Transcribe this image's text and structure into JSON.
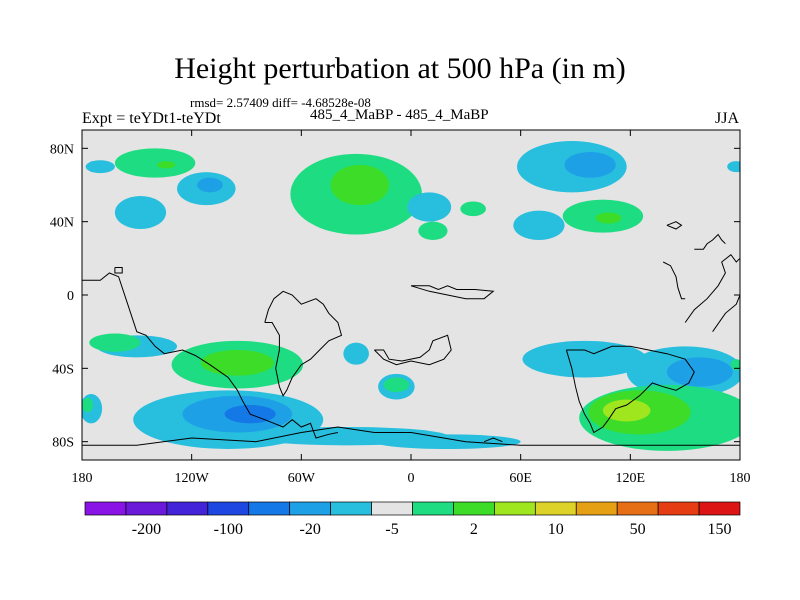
{
  "chart_data": {
    "type": "contour map",
    "title": "Height perturbation at 500 hPa (in m)",
    "rmsd_line": "rmsd= 2.57409 diff= -4.68528e-08",
    "left_label": "Expt = teYDt1-teYDt",
    "center_label": "485_4_MaBP - 485_4_MaBP",
    "right_label": "JJA",
    "x_ticks": [
      "180",
      "120W",
      "60W",
      "0",
      "60E",
      "120E",
      "180"
    ],
    "x_tick_values": [
      -180,
      -120,
      -60,
      0,
      60,
      120,
      180
    ],
    "y_ticks": [
      "80N",
      "40N",
      "0",
      "40S",
      "80S"
    ],
    "y_tick_values": [
      80,
      40,
      0,
      -40,
      -80
    ],
    "xlim": [
      -180,
      180
    ],
    "ylim": [
      -90,
      90
    ],
    "colorbar_labels": [
      "-200",
      "-100",
      "-20",
      "-5",
      "2",
      "10",
      "50",
      "150"
    ],
    "colorbar_colors": [
      "#8a14e6",
      "#6a1ad8",
      "#4424d8",
      "#1e46e0",
      "#1478e6",
      "#1ea0e6",
      "#28bede",
      "#e4e4e4",
      "#1edc82",
      "#3cdc28",
      "#a0e61e",
      "#dcd228",
      "#e6a014",
      "#e66e14",
      "#e63c14",
      "#dc1414"
    ],
    "background_color": "#e4e4e4",
    "contours": [
      {
        "level": "-5",
        "color": "#28bede",
        "lon": -170,
        "lat": 70,
        "rlon": 8,
        "rlat": 3.5
      },
      {
        "level": "-5",
        "color": "#28bede",
        "lon": -112,
        "lat": 58,
        "rlon": 16,
        "rlat": 9
      },
      {
        "level": "-20",
        "color": "#1ea0e6",
        "lon": -110,
        "lat": 60,
        "rlon": 7,
        "rlat": 4
      },
      {
        "level": "-5",
        "color": "#28bede",
        "lon": -148,
        "lat": 45,
        "rlon": 14,
        "rlat": 9
      },
      {
        "level": "2",
        "color": "#1edc82",
        "lon": -140,
        "lat": 72,
        "rlon": 22,
        "rlat": 8
      },
      {
        "level": "10",
        "color": "#3cdc28",
        "lon": -134,
        "lat": 71,
        "rlon": 5,
        "rlat": 2
      },
      {
        "level": "2",
        "color": "#1edc82",
        "lon": -30,
        "lat": 55,
        "rlon": 36,
        "rlat": 22
      },
      {
        "level": "10",
        "color": "#3cdc28",
        "lon": -28,
        "lat": 60,
        "rlon": 16,
        "rlat": 11
      },
      {
        "level": "-5",
        "color": "#28bede",
        "lon": 10,
        "lat": 48,
        "rlon": 12,
        "rlat": 8
      },
      {
        "level": "2",
        "color": "#1edc82",
        "lon": 12,
        "lat": 35,
        "rlon": 8,
        "rlat": 5
      },
      {
        "level": "2",
        "color": "#1edc82",
        "lon": 34,
        "lat": 47,
        "rlon": 7,
        "rlat": 4
      },
      {
        "level": "-5",
        "color": "#28bede",
        "lon": 70,
        "lat": 38,
        "rlon": 14,
        "rlat": 8
      },
      {
        "level": "-5",
        "color": "#28bede",
        "lon": 88,
        "lat": 70,
        "rlon": 30,
        "rlat": 14
      },
      {
        "level": "-20",
        "color": "#1ea0e6",
        "lon": 98,
        "lat": 71,
        "rlon": 14,
        "rlat": 7
      },
      {
        "level": "2",
        "color": "#1edc82",
        "lon": 105,
        "lat": 43,
        "rlon": 22,
        "rlat": 9
      },
      {
        "level": "10",
        "color": "#3cdc28",
        "lon": 108,
        "lat": 42,
        "rlon": 7,
        "rlat": 3
      },
      {
        "level": "-5",
        "color": "#28bede",
        "lon": 178,
        "lat": 70,
        "rlon": 5,
        "rlat": 3
      },
      {
        "level": "-5",
        "color": "#28bede",
        "lon": -174,
        "lat": 70,
        "rlon": 3,
        "rlat": 3
      },
      {
        "level": "-5",
        "color": "#28bede",
        "lon": -150,
        "lat": -28,
        "rlon": 22,
        "rlat": 6
      },
      {
        "level": "2",
        "color": "#1edc82",
        "lon": -162,
        "lat": -26,
        "rlon": 14,
        "rlat": 5
      },
      {
        "level": "2",
        "color": "#1edc82",
        "lon": -95,
        "lat": -38,
        "rlon": 36,
        "rlat": 13
      },
      {
        "level": "10",
        "color": "#3cdc28",
        "lon": -95,
        "lat": -37,
        "rlon": 20,
        "rlat": 7
      },
      {
        "level": "-5",
        "color": "#28bede",
        "lon": -30,
        "lat": -32,
        "rlon": 7,
        "rlat": 6
      },
      {
        "level": "-5",
        "color": "#28bede",
        "lon": -8,
        "lat": -50,
        "rlon": 10,
        "rlat": 7
      },
      {
        "level": "2",
        "color": "#1edc82",
        "lon": -8,
        "lat": -49,
        "rlon": 7,
        "rlat": 4
      },
      {
        "level": "-5",
        "color": "#28bede",
        "lon": -100,
        "lat": -68,
        "rlon": 52,
        "rlat": 16
      },
      {
        "level": "-20",
        "color": "#1ea0e6",
        "lon": -95,
        "lat": -65,
        "rlon": 30,
        "rlat": 10
      },
      {
        "level": "-20",
        "color": "#1478e6",
        "lon": -88,
        "lat": -65,
        "rlon": 14,
        "rlat": 5
      },
      {
        "level": "-5",
        "color": "#28bede",
        "lon": -35,
        "lat": -77,
        "rlon": 55,
        "rlat": 5
      },
      {
        "level": "-5",
        "color": "#28bede",
        "lon": 20,
        "lat": -80,
        "rlon": 40,
        "rlat": 4
      },
      {
        "level": "-5",
        "color": "#28bede",
        "lon": -175,
        "lat": -62,
        "rlon": 6,
        "rlat": 8
      },
      {
        "level": "2",
        "color": "#1edc82",
        "lon": -177,
        "lat": -60,
        "rlon": 3,
        "rlat": 4
      },
      {
        "level": "-5",
        "color": "#28bede",
        "lon": 95,
        "lat": -35,
        "rlon": 34,
        "rlat": 10
      },
      {
        "level": "-5",
        "color": "#28bede",
        "lon": 150,
        "lat": -42,
        "rlon": 32,
        "rlat": 14
      },
      {
        "level": "-20",
        "color": "#1ea0e6",
        "lon": 158,
        "lat": -42,
        "rlon": 18,
        "rlat": 8
      },
      {
        "level": "2",
        "color": "#1edc82",
        "lon": 140,
        "lat": -67,
        "rlon": 48,
        "rlat": 18
      },
      {
        "level": "10",
        "color": "#3cdc28",
        "lon": 125,
        "lat": -64,
        "rlon": 28,
        "rlat": 12
      },
      {
        "level": "50",
        "color": "#a0e61e",
        "lon": 118,
        "lat": -63,
        "rlon": 13,
        "rlat": 6
      },
      {
        "level": "2",
        "color": "#1edc82",
        "lon": 178,
        "lat": -38,
        "rlon": 3,
        "rlat": 3
      }
    ],
    "coastlines": [
      [
        [
          -180,
          -82
        ],
        [
          -150,
          -82
        ],
        [
          -120,
          -78
        ],
        [
          -85,
          -80
        ],
        [
          -60,
          -75
        ],
        [
          -40,
          -72
        ],
        [
          -20,
          -75
        ],
        [
          0,
          -75
        ],
        [
          30,
          -80
        ],
        [
          60,
          -82
        ],
        [
          100,
          -82
        ],
        [
          150,
          -82
        ],
        [
          180,
          -82
        ]
      ],
      [
        [
          -180,
          8
        ],
        [
          -170,
          8
        ],
        [
          -165,
          12
        ],
        [
          -160,
          10
        ],
        [
          -155,
          -5
        ],
        [
          -150,
          -20
        ],
        [
          -145,
          -22
        ],
        [
          -140,
          -28
        ],
        [
          -135,
          -32
        ],
        [
          -125,
          -30
        ],
        [
          -118,
          -33
        ],
        [
          -110,
          -38
        ],
        [
          -100,
          -45
        ],
        [
          -95,
          -52
        ],
        [
          -92,
          -58
        ],
        [
          -88,
          -65
        ],
        [
          -80,
          -68
        ],
        [
          -75,
          -70
        ],
        [
          -70,
          -72
        ],
        [
          -65,
          -68
        ],
        [
          -60,
          -72
        ],
        [
          -55,
          -70
        ],
        [
          -52,
          -78
        ],
        [
          -45,
          -76
        ],
        [
          -40,
          -75
        ]
      ],
      [
        [
          -80,
          -15
        ],
        [
          -78,
          -8
        ],
        [
          -75,
          -2
        ],
        [
          -70,
          2
        ],
        [
          -65,
          0
        ],
        [
          -60,
          -5
        ],
        [
          -52,
          -2
        ],
        [
          -48,
          -5
        ],
        [
          -45,
          -10
        ],
        [
          -40,
          -15
        ],
        [
          -38,
          -22
        ],
        [
          -45,
          -25
        ],
        [
          -50,
          -30
        ],
        [
          -55,
          -35
        ],
        [
          -60,
          -38
        ],
        [
          -65,
          -45
        ],
        [
          -68,
          -52
        ],
        [
          -70,
          -55
        ],
        [
          -72,
          -50
        ],
        [
          -74,
          -40
        ],
        [
          -72,
          -30
        ],
        [
          -72,
          -22
        ],
        [
          -76,
          -15
        ],
        [
          -80,
          -15
        ]
      ],
      [
        [
          -20,
          -30
        ],
        [
          -15,
          -30
        ],
        [
          -12,
          -35
        ],
        [
          -5,
          -36
        ],
        [
          5,
          -34
        ],
        [
          10,
          -30
        ],
        [
          12,
          -25
        ],
        [
          20,
          -22
        ],
        [
          22,
          -30
        ],
        [
          18,
          -35
        ],
        [
          10,
          -38
        ],
        [
          0,
          -36
        ],
        [
          -8,
          -38
        ],
        [
          -15,
          -35
        ],
        [
          -20,
          -30
        ]
      ],
      [
        [
          0,
          5
        ],
        [
          10,
          5
        ],
        [
          15,
          3
        ],
        [
          20,
          5
        ],
        [
          25,
          3
        ],
        [
          35,
          3
        ],
        [
          45,
          2
        ],
        [
          40,
          -2
        ],
        [
          30,
          -2
        ],
        [
          20,
          0
        ],
        [
          10,
          2
        ],
        [
          0,
          5
        ]
      ],
      [
        [
          40,
          -80
        ],
        [
          45,
          -78
        ],
        [
          50,
          -80
        ]
      ],
      [
        [
          85,
          -30
        ],
        [
          95,
          -30
        ],
        [
          100,
          -32
        ],
        [
          105,
          -30
        ],
        [
          110,
          -28
        ],
        [
          120,
          -28
        ],
        [
          130,
          -30
        ],
        [
          140,
          -32
        ],
        [
          150,
          -35
        ],
        [
          155,
          -42
        ],
        [
          152,
          -48
        ],
        [
          145,
          -52
        ],
        [
          138,
          -50
        ],
        [
          132,
          -48
        ],
        [
          125,
          -55
        ],
        [
          118,
          -60
        ],
        [
          112,
          -62
        ],
        [
          108,
          -68
        ],
        [
          105,
          -72
        ],
        [
          100,
          -75
        ],
        [
          98,
          -70
        ],
        [
          95,
          -65
        ],
        [
          92,
          -58
        ],
        [
          90,
          -50
        ],
        [
          88,
          -40
        ],
        [
          85,
          -30
        ]
      ],
      [
        [
          165,
          -20
        ],
        [
          172,
          -10
        ],
        [
          178,
          -5
        ],
        [
          180,
          0
        ]
      ],
      [
        [
          150,
          -15
        ],
        [
          155,
          -8
        ],
        [
          162,
          -2
        ],
        [
          168,
          5
        ],
        [
          172,
          12
        ],
        [
          170,
          18
        ],
        [
          175,
          22
        ],
        [
          178,
          18
        ],
        [
          180,
          20
        ]
      ],
      [
        [
          138,
          18
        ],
        [
          142,
          16
        ],
        [
          145,
          10
        ],
        [
          146,
          4
        ],
        [
          148,
          -2
        ],
        [
          150,
          -2
        ]
      ],
      [
        [
          140,
          38
        ],
        [
          145,
          40
        ],
        [
          148,
          38
        ],
        [
          145,
          36
        ],
        [
          140,
          38
        ]
      ],
      [
        [
          155,
          25
        ],
        [
          160,
          25
        ],
        [
          162,
          28
        ],
        [
          165,
          30
        ],
        [
          168,
          33
        ],
        [
          170,
          30
        ],
        [
          172,
          28
        ]
      ],
      [
        [
          -162,
          15
        ],
        [
          -158,
          15
        ],
        [
          -158,
          12
        ],
        [
          -162,
          12
        ],
        [
          -162,
          15
        ]
      ]
    ]
  }
}
